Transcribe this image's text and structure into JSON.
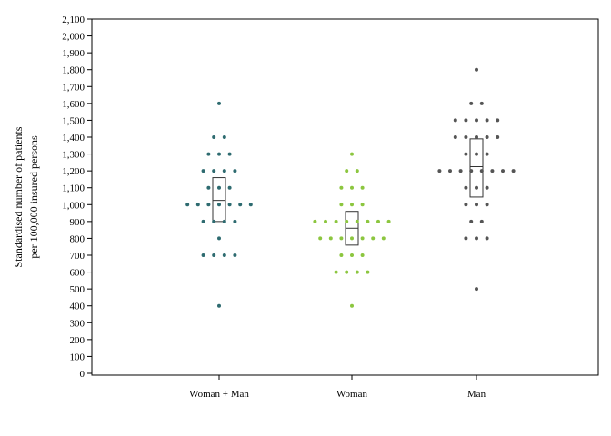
{
  "chart_data": {
    "type": "scatter",
    "subtype": "dot-plot",
    "title": "",
    "xlabel": "",
    "ylabel": [
      "Standardised number of patients",
      "per 100,000 insured persons"
    ],
    "ylim": [
      0,
      2100
    ],
    "ytick_step": 100,
    "ytick_labels": [
      "0",
      "100",
      "200",
      "300",
      "400",
      "500",
      "600",
      "700",
      "800",
      "900",
      "1,000",
      "1,100",
      "1,200",
      "1,300",
      "1,400",
      "1,500",
      "1,600",
      "1,700",
      "1,800",
      "1,900",
      "2,000",
      "2,100"
    ],
    "categories": [
      "Woman + Man",
      "Woman",
      "Man"
    ],
    "grid": false,
    "legend": "none",
    "series": [
      {
        "category": "Woman + Man",
        "color": "#2e6b70",
        "points": [
          [
            0,
            1600
          ],
          [
            -1,
            1400
          ],
          [
            1,
            1400
          ],
          [
            -2,
            1300
          ],
          [
            0,
            1300
          ],
          [
            2,
            1300
          ],
          [
            -3,
            1200
          ],
          [
            -1,
            1200
          ],
          [
            1,
            1200
          ],
          [
            3,
            1200
          ],
          [
            -2,
            1100
          ],
          [
            0,
            1100
          ],
          [
            2,
            1100
          ],
          [
            -6,
            1000
          ],
          [
            -4,
            1000
          ],
          [
            -2,
            1000
          ],
          [
            0,
            1000
          ],
          [
            2,
            1000
          ],
          [
            4,
            1000
          ],
          [
            6,
            1000
          ],
          [
            -3,
            900
          ],
          [
            -1,
            900
          ],
          [
            1,
            900
          ],
          [
            3,
            900
          ],
          [
            0,
            800
          ],
          [
            -3,
            700
          ],
          [
            -1,
            700
          ],
          [
            1,
            700
          ],
          [
            3,
            700
          ],
          [
            0,
            400
          ]
        ],
        "box": {
          "q1": 900,
          "median": 1025,
          "q3": 1160
        }
      },
      {
        "category": "Woman",
        "color": "#8cc63f",
        "points": [
          [
            0,
            1300
          ],
          [
            -1,
            1200
          ],
          [
            1,
            1200
          ],
          [
            -2,
            1100
          ],
          [
            0,
            1100
          ],
          [
            2,
            1100
          ],
          [
            -2,
            1000
          ],
          [
            0,
            1000
          ],
          [
            2,
            1000
          ],
          [
            -7,
            900
          ],
          [
            -5,
            900
          ],
          [
            -3,
            900
          ],
          [
            -1,
            900
          ],
          [
            1,
            900
          ],
          [
            3,
            900
          ],
          [
            5,
            900
          ],
          [
            7,
            900
          ],
          [
            -6,
            800
          ],
          [
            -4,
            800
          ],
          [
            -2,
            800
          ],
          [
            0,
            800
          ],
          [
            2,
            800
          ],
          [
            4,
            800
          ],
          [
            6,
            800
          ],
          [
            -2,
            700
          ],
          [
            0,
            700
          ],
          [
            2,
            700
          ],
          [
            -3,
            600
          ],
          [
            -1,
            600
          ],
          [
            1,
            600
          ],
          [
            3,
            600
          ],
          [
            0,
            400
          ]
        ],
        "box": {
          "q1": 760,
          "median": 860,
          "q3": 960
        }
      },
      {
        "category": "Man",
        "color": "#555555",
        "points": [
          [
            0,
            1800
          ],
          [
            -1,
            1600
          ],
          [
            1,
            1600
          ],
          [
            -4,
            1500
          ],
          [
            -2,
            1500
          ],
          [
            0,
            1500
          ],
          [
            2,
            1500
          ],
          [
            4,
            1500
          ],
          [
            -4,
            1400
          ],
          [
            -2,
            1400
          ],
          [
            0,
            1400
          ],
          [
            2,
            1400
          ],
          [
            4,
            1400
          ],
          [
            -2,
            1300
          ],
          [
            0,
            1300
          ],
          [
            2,
            1300
          ],
          [
            -7,
            1200
          ],
          [
            -5,
            1200
          ],
          [
            -3,
            1200
          ],
          [
            -1,
            1200
          ],
          [
            1,
            1200
          ],
          [
            3,
            1200
          ],
          [
            5,
            1200
          ],
          [
            7,
            1200
          ],
          [
            -2,
            1100
          ],
          [
            0,
            1100
          ],
          [
            2,
            1100
          ],
          [
            -2,
            1000
          ],
          [
            0,
            1000
          ],
          [
            2,
            1000
          ],
          [
            -1,
            900
          ],
          [
            1,
            900
          ],
          [
            -2,
            800
          ],
          [
            0,
            800
          ],
          [
            2,
            800
          ],
          [
            0,
            500
          ]
        ],
        "box": {
          "q1": 1045,
          "median": 1225,
          "q3": 1390
        }
      }
    ]
  }
}
